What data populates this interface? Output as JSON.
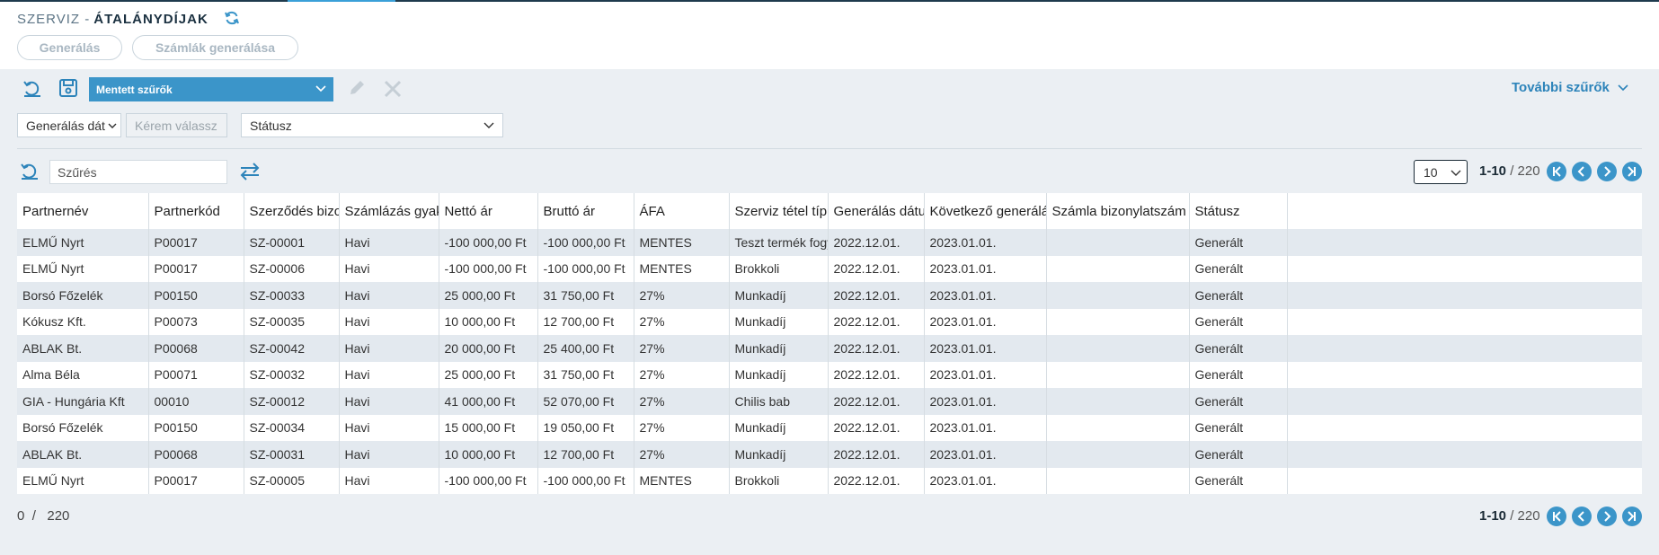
{
  "header": {
    "title_prefix": "SZERVIZ -",
    "title_bold": "ÁTALÁNYDÍJAK",
    "buttons": {
      "generate": "Generálás",
      "generate_invoices": "Számlák generálása"
    }
  },
  "toolbar": {
    "saved_filters": "Mentett szűrők",
    "more_filters": "További szűrők"
  },
  "filters": {
    "generation_date": "Generálás dát",
    "choose_placeholder": "Kérem válassz",
    "status": "Státusz"
  },
  "search": {
    "placeholder": "Szűrés"
  },
  "pager": {
    "page_size": "10",
    "range": "1-10",
    "separator": " / ",
    "total": "220"
  },
  "footer": {
    "selected": "0",
    "separator": "/",
    "total": "220"
  },
  "table": {
    "columns": [
      "Partnernév",
      "Partnerkód",
      "Szerződés bizonylat",
      "Számlázás gyakoriság",
      "Nettó ár",
      "Bruttó ár",
      "ÁFA",
      "Szerviz tétel típus",
      "Generálás dátuma",
      "Következő generálás",
      "Számla bizonylatszám",
      "Státusz",
      ""
    ],
    "rows": [
      [
        "ELMŰ Nyrt",
        "P00017",
        "SZ-00001",
        "Havi",
        "-100 000,00 Ft",
        "-100 000,00 Ft",
        "MENTES",
        "Teszt termék fogyó",
        "2022.12.01.",
        "2023.01.01.",
        "",
        "Generált",
        ""
      ],
      [
        "ELMŰ Nyrt",
        "P00017",
        "SZ-00006",
        "Havi",
        "-100 000,00 Ft",
        "-100 000,00 Ft",
        "MENTES",
        "Brokkoli",
        "2022.12.01.",
        "2023.01.01.",
        "",
        "Generált",
        ""
      ],
      [
        "Borsó Főzelék",
        "P00150",
        "SZ-00033",
        "Havi",
        "25 000,00 Ft",
        "31 750,00 Ft",
        "27%",
        "Munkadíj",
        "2022.12.01.",
        "2023.01.01.",
        "",
        "Generált",
        ""
      ],
      [
        "Kókusz Kft.",
        "P00073",
        "SZ-00035",
        "Havi",
        "10 000,00 Ft",
        "12 700,00 Ft",
        "27%",
        "Munkadíj",
        "2022.12.01.",
        "2023.01.01.",
        "",
        "Generált",
        ""
      ],
      [
        "ABLAK Bt.",
        "P00068",
        "SZ-00042",
        "Havi",
        "20 000,00 Ft",
        "25 400,00 Ft",
        "27%",
        "Munkadíj",
        "2022.12.01.",
        "2023.01.01.",
        "",
        "Generált",
        ""
      ],
      [
        "Alma Béla",
        "P00071",
        "SZ-00032",
        "Havi",
        "25 000,00 Ft",
        "31 750,00 Ft",
        "27%",
        "Munkadíj",
        "2022.12.01.",
        "2023.01.01.",
        "",
        "Generált",
        ""
      ],
      [
        "GIA - Hungária Kft",
        "00010",
        "SZ-00012",
        "Havi",
        "41 000,00 Ft",
        "52 070,00 Ft",
        "27%",
        "Chilis bab",
        "2022.12.01.",
        "2023.01.01.",
        "",
        "Generált",
        ""
      ],
      [
        "Borsó Főzelék",
        "P00150",
        "SZ-00034",
        "Havi",
        "15 000,00 Ft",
        "19 050,00 Ft",
        "27%",
        "Munkadíj",
        "2022.12.01.",
        "2023.01.01.",
        "",
        "Generált",
        ""
      ],
      [
        "ABLAK Bt.",
        "P00068",
        "SZ-00031",
        "Havi",
        "10 000,00 Ft",
        "12 700,00 Ft",
        "27%",
        "Munkadíj",
        "2022.12.01.",
        "2023.01.01.",
        "",
        "Generált",
        ""
      ],
      [
        "ELMŰ Nyrt",
        "P00017",
        "SZ-00005",
        "Havi",
        "-100 000,00 Ft",
        "-100 000,00 Ft",
        "MENTES",
        "Brokkoli",
        "2022.12.01.",
        "2023.01.01.",
        "",
        "Generált",
        ""
      ]
    ]
  },
  "colors": {
    "accent": "#3b95c9",
    "row_alt": "#e3e9ef",
    "background": "#ebeff3"
  }
}
